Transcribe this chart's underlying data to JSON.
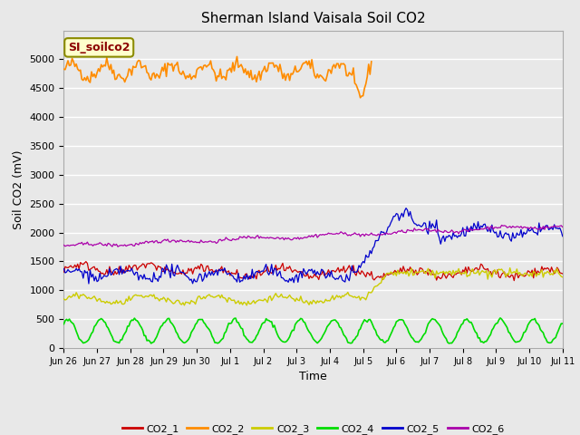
{
  "title": "Sherman Island Vaisala Soil CO2",
  "xlabel": "Time",
  "ylabel": "Soil CO2 (mV)",
  "ylim": [
    0,
    5500
  ],
  "xlim": [
    0,
    360
  ],
  "annotation_text": "SI_soilco2",
  "fig_bg_color": "#e8e8e8",
  "plot_bg_color": "#e8e8e8",
  "line_colors": {
    "CO2_1": "#cc0000",
    "CO2_2": "#ff8c00",
    "CO2_3": "#cccc00",
    "CO2_4": "#00dd00",
    "CO2_5": "#0000cc",
    "CO2_6": "#aa00aa"
  },
  "xtick_labels": [
    "Jun 26",
    "Jun 27",
    "Jun 28",
    "Jun 29",
    "Jun 30",
    "Jul 1",
    "Jul 2",
    "Jul 3",
    "Jul 4",
    "Jul 5",
    "Jul 6",
    "Jul 7",
    "Jul 8",
    "Jul 9",
    "Jul 10",
    "Jul 11"
  ],
  "xtick_positions": [
    0,
    24,
    48,
    72,
    96,
    120,
    144,
    168,
    192,
    216,
    240,
    264,
    288,
    312,
    336,
    360
  ],
  "ytick_vals": [
    0,
    500,
    1000,
    1500,
    2000,
    2500,
    3000,
    3500,
    4000,
    4500,
    5000
  ]
}
